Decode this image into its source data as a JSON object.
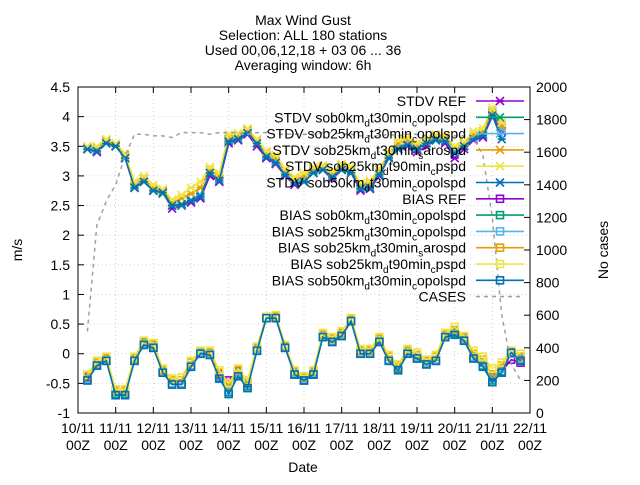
{
  "chart_data": {
    "type": "line",
    "title_lines": [
      "Max Wind Gust",
      "Selection: ALL    180 stations",
      "Used 00,06,12,18 + 03 06 ... 36",
      "Averaging window:  6h"
    ],
    "xlabel": "Date",
    "ylabel_left": "m/s",
    "ylabel_right": "No cases",
    "ylim_left": [
      -1,
      4.5
    ],
    "ylim_right": [
      0,
      2000
    ],
    "yticks_left": [
      "-1",
      "-0.5",
      "0",
      "0.5",
      "1",
      "1.5",
      "2",
      "2.5",
      "3",
      "3.5",
      "4",
      "4.5"
    ],
    "yticks_right": [
      "0",
      "200",
      "400",
      "600",
      "800",
      "1000",
      "1200",
      "1400",
      "1600",
      "1800",
      "2000"
    ],
    "xticks": [
      {
        "day": "10/11",
        "hour": "00Z"
      },
      {
        "day": "11/11",
        "hour": "00Z"
      },
      {
        "day": "12/11",
        "hour": "00Z"
      },
      {
        "day": "13/11",
        "hour": "00Z"
      },
      {
        "day": "14/11",
        "hour": "00Z"
      },
      {
        "day": "15/11",
        "hour": "00Z"
      },
      {
        "day": "16/11",
        "hour": "00Z"
      },
      {
        "day": "17/11",
        "hour": "00Z"
      },
      {
        "day": "18/11",
        "hour": "00Z"
      },
      {
        "day": "19/11",
        "hour": "00Z"
      },
      {
        "day": "20/11",
        "hour": "00Z"
      },
      {
        "day": "21/11",
        "hour": "00Z"
      },
      {
        "day": "22/11",
        "hour": "00Z"
      }
    ],
    "x_days": [
      0.25,
      0.5,
      0.75,
      1.0,
      1.25,
      1.5,
      1.75,
      2.0,
      2.25,
      2.5,
      2.75,
      3.0,
      3.25,
      3.5,
      3.75,
      4.0,
      4.25,
      4.5,
      4.75,
      5.0,
      5.25,
      5.5,
      5.75,
      6.0,
      6.25,
      6.5,
      6.75,
      7.0,
      7.25,
      7.5,
      7.75,
      8.0,
      8.25,
      8.5,
      8.75,
      9.0,
      9.25,
      9.5,
      9.75,
      10.0,
      10.25,
      10.5,
      10.75,
      11.0,
      11.25,
      11.5,
      11.75
    ],
    "series": [
      {
        "name": "STDV REF",
        "color": "#9400d3",
        "marker": "x",
        "axis": "left",
        "values": [
          3.45,
          3.4,
          3.55,
          3.5,
          3.3,
          2.8,
          2.95,
          2.75,
          2.72,
          2.45,
          2.5,
          2.55,
          2.62,
          3.0,
          2.9,
          3.55,
          3.6,
          3.7,
          3.5,
          3.3,
          3.2,
          3.0,
          2.85,
          2.9,
          3.05,
          3.1,
          2.95,
          3.1,
          3.05,
          2.75,
          2.78,
          3.0,
          3.3,
          3.45,
          3.5,
          3.4,
          3.5,
          3.6,
          3.55,
          3.3,
          3.45,
          3.6,
          3.65,
          4.0,
          3.75,
          null,
          null
        ]
      },
      {
        "name": "STDV sob0km_d t30min_c opolspd",
        "label_main": "STDV sob0km",
        "label_sub1": "d",
        "label_mid": "t30min",
        "label_sub2": "c",
        "label_end": "opolspd",
        "color": "#009e73",
        "marker": "x",
        "axis": "left",
        "values": [
          3.45,
          3.42,
          3.55,
          3.5,
          3.3,
          2.82,
          2.9,
          2.75,
          2.7,
          2.5,
          2.5,
          2.58,
          2.65,
          3.05,
          2.95,
          3.6,
          3.62,
          3.72,
          3.55,
          3.35,
          3.25,
          3.02,
          2.88,
          2.92,
          3.08,
          3.12,
          2.98,
          3.12,
          3.08,
          2.78,
          2.8,
          3.02,
          3.32,
          3.48,
          3.55,
          3.45,
          3.55,
          3.62,
          3.6,
          3.4,
          3.5,
          3.65,
          3.7,
          4.05,
          3.85,
          null,
          null
        ]
      },
      {
        "name": "STDV sob25km_d t30min_c opolspd",
        "label_main": "STDV sob25km",
        "label_sub1": "d",
        "label_mid": "t30min",
        "label_sub2": "c",
        "label_end": "opolspd",
        "color": "#56b4e9",
        "marker": "x",
        "axis": "left",
        "values": [
          3.47,
          3.44,
          3.57,
          3.5,
          3.32,
          2.84,
          2.9,
          2.77,
          2.72,
          2.52,
          2.52,
          2.6,
          2.68,
          3.05,
          2.95,
          3.62,
          3.65,
          3.75,
          3.55,
          3.35,
          3.25,
          3.05,
          2.9,
          2.95,
          3.1,
          3.12,
          3.0,
          3.15,
          3.1,
          2.8,
          2.82,
          3.05,
          3.35,
          3.5,
          3.55,
          3.48,
          3.58,
          3.65,
          3.62,
          3.42,
          3.52,
          3.65,
          3.72,
          4.08,
          3.8,
          null,
          null
        ]
      },
      {
        "name": "STDV sob25km_d t30min_s arospd",
        "label_main": "STDV sob25km",
        "label_sub1": "d",
        "label_mid": "t30min",
        "label_sub2": "s",
        "label_end": "arospd",
        "color": "#e69f00",
        "marker": "x",
        "axis": "left",
        "values": [
          3.5,
          3.48,
          3.6,
          3.52,
          3.35,
          2.88,
          2.95,
          2.8,
          2.75,
          2.55,
          2.62,
          2.7,
          2.8,
          3.1,
          3.0,
          3.65,
          3.68,
          3.78,
          3.6,
          3.4,
          3.3,
          3.1,
          2.95,
          3.0,
          3.12,
          3.15,
          3.05,
          3.18,
          3.12,
          2.85,
          2.88,
          3.1,
          3.38,
          3.55,
          3.6,
          3.52,
          3.6,
          3.68,
          3.65,
          3.48,
          3.55,
          3.7,
          3.75,
          4.1,
          3.85,
          null,
          null
        ]
      },
      {
        "name": "STDV sob25km_d t90min_c pspd",
        "label_main": "STDV sob25km",
        "label_sub1": "d",
        "label_mid": "t90min",
        "label_sub2": "c",
        "label_end": "pspd",
        "color": "#f0e442",
        "marker": "x",
        "axis": "left",
        "values": [
          3.5,
          3.5,
          3.62,
          3.55,
          3.38,
          2.9,
          3.0,
          2.85,
          2.78,
          2.6,
          2.68,
          2.8,
          2.9,
          3.15,
          3.05,
          3.7,
          3.72,
          3.8,
          3.62,
          3.42,
          3.35,
          3.12,
          2.98,
          3.05,
          3.15,
          3.18,
          3.08,
          3.2,
          3.15,
          2.88,
          2.92,
          3.12,
          3.4,
          3.6,
          3.65,
          3.55,
          3.62,
          3.7,
          3.68,
          3.5,
          3.58,
          3.75,
          3.8,
          4.15,
          3.9,
          null,
          null
        ]
      },
      {
        "name": "STDV sob50km_d t30min_c opolspd",
        "label_main": "STDV sob50km",
        "label_sub1": "d",
        "label_mid": "t30min",
        "label_sub2": "c",
        "label_end": "opolspd",
        "color": "#0072b2",
        "marker": "x",
        "axis": "left",
        "values": [
          3.45,
          3.42,
          3.55,
          3.5,
          3.3,
          2.8,
          2.9,
          2.75,
          2.72,
          2.5,
          2.52,
          2.58,
          2.65,
          3.05,
          2.92,
          3.58,
          3.62,
          3.72,
          3.55,
          3.32,
          3.22,
          3.02,
          2.88,
          2.9,
          3.05,
          3.1,
          2.98,
          3.1,
          3.05,
          2.78,
          2.8,
          3.02,
          3.3,
          3.45,
          3.52,
          3.45,
          3.55,
          3.6,
          3.58,
          3.38,
          3.5,
          3.62,
          3.68,
          4.02,
          3.62,
          null,
          null
        ]
      },
      {
        "name": "BIAS REF",
        "color": "#9400d3",
        "marker": "square",
        "axis": "left",
        "values": [
          -0.4,
          -0.2,
          -0.1,
          -0.65,
          -0.65,
          -0.1,
          0.15,
          0.1,
          -0.3,
          -0.5,
          -0.5,
          -0.2,
          0.0,
          0.0,
          -0.35,
          -0.45,
          -0.3,
          -0.5,
          0.05,
          0.6,
          0.6,
          0.1,
          -0.35,
          -0.45,
          -0.35,
          0.3,
          0.2,
          0.3,
          0.55,
          0.0,
          0.0,
          0.2,
          -0.1,
          -0.25,
          0.0,
          -0.05,
          -0.15,
          -0.1,
          0.3,
          0.35,
          0.25,
          -0.05,
          -0.15,
          -0.4,
          -0.3,
          -0.1,
          -0.15
        ]
      },
      {
        "name": "BIAS sob0km_d t30min_c opolspd",
        "label_main": "BIAS sob0km",
        "label_sub1": "d",
        "label_mid": "t30min",
        "label_sub2": "c",
        "label_end": "opolspd",
        "color": "#009e73",
        "marker": "square",
        "axis": "left",
        "values": [
          -0.45,
          -0.2,
          -0.12,
          -0.68,
          -0.68,
          -0.12,
          0.15,
          0.12,
          -0.32,
          -0.52,
          -0.52,
          -0.22,
          0.0,
          -0.02,
          -0.4,
          -0.65,
          -0.35,
          -0.55,
          0.05,
          0.6,
          0.62,
          0.1,
          -0.35,
          -0.45,
          -0.35,
          0.28,
          0.2,
          0.3,
          0.55,
          0.0,
          0.0,
          0.22,
          -0.12,
          -0.25,
          0.0,
          -0.08,
          -0.18,
          -0.12,
          0.28,
          0.35,
          0.22,
          -0.08,
          -0.2,
          -0.45,
          -0.3,
          0.02,
          -0.1
        ]
      },
      {
        "name": "BIAS sob25km_d t30min_c opolspd",
        "label_main": "BIAS sob25km",
        "label_sub1": "d",
        "label_mid": "t30min",
        "label_sub2": "c",
        "label_end": "opolspd",
        "color": "#56b4e9",
        "marker": "square",
        "axis": "left",
        "values": [
          -0.42,
          -0.18,
          -0.1,
          -0.65,
          -0.65,
          -0.1,
          0.18,
          0.12,
          -0.3,
          -0.5,
          -0.5,
          -0.2,
          0.02,
          0.0,
          -0.38,
          -0.62,
          -0.32,
          -0.52,
          0.08,
          0.62,
          0.62,
          0.12,
          -0.32,
          -0.42,
          -0.32,
          0.3,
          0.22,
          0.32,
          0.55,
          0.02,
          0.02,
          0.22,
          -0.1,
          -0.22,
          0.02,
          -0.05,
          -0.15,
          -0.1,
          0.3,
          0.38,
          0.25,
          -0.05,
          -0.15,
          -0.42,
          -0.25,
          0.0,
          -0.08
        ]
      },
      {
        "name": "BIAS sob25km_d t30min_s arospd",
        "label_main": "BIAS sob25km",
        "label_sub1": "d",
        "label_mid": "t30min",
        "label_sub2": "s",
        "label_end": "arospd",
        "color": "#e69f00",
        "marker": "square",
        "axis": "left",
        "values": [
          -0.38,
          -0.15,
          -0.08,
          -0.62,
          -0.62,
          -0.08,
          0.2,
          0.15,
          -0.28,
          -0.45,
          -0.45,
          -0.15,
          0.05,
          0.02,
          -0.32,
          -0.55,
          -0.28,
          -0.48,
          0.1,
          0.62,
          0.62,
          0.12,
          -0.3,
          -0.4,
          -0.3,
          0.32,
          0.25,
          0.35,
          0.58,
          0.05,
          0.05,
          0.25,
          -0.05,
          -0.2,
          0.05,
          -0.02,
          -0.12,
          -0.05,
          0.32,
          0.4,
          0.28,
          0.0,
          -0.1,
          -0.35,
          -0.2,
          0.05,
          -0.05
        ]
      },
      {
        "name": "BIAS sob25km_d t90min_c pspd",
        "label_main": "BIAS sob25km",
        "label_sub1": "d",
        "label_mid": "t90min",
        "label_sub2": "c",
        "label_end": "pspd",
        "color": "#f0e442",
        "marker": "square",
        "axis": "left",
        "values": [
          -0.35,
          -0.12,
          -0.05,
          -0.6,
          -0.6,
          -0.05,
          0.22,
          0.18,
          -0.25,
          -0.42,
          -0.4,
          -0.12,
          0.05,
          0.05,
          -0.28,
          -0.5,
          -0.25,
          -0.45,
          0.12,
          0.62,
          0.65,
          0.15,
          -0.28,
          -0.38,
          -0.28,
          0.35,
          0.28,
          0.38,
          0.6,
          0.08,
          0.08,
          0.28,
          -0.02,
          -0.18,
          0.08,
          0.02,
          -0.1,
          -0.02,
          0.35,
          0.45,
          0.3,
          0.05,
          -0.05,
          -0.25,
          -0.15,
          0.05,
          0.0
        ]
      },
      {
        "name": "BIAS sob50km_d t30min_c opolspd",
        "label_main": "BIAS sob50km",
        "label_sub1": "d",
        "label_mid": "t30min",
        "label_sub2": "c",
        "label_end": "opolspd",
        "color": "#0072b2",
        "marker": "square",
        "axis": "left",
        "values": [
          -0.45,
          -0.2,
          -0.12,
          -0.7,
          -0.7,
          -0.12,
          0.15,
          0.1,
          -0.32,
          -0.52,
          -0.52,
          -0.22,
          0.0,
          -0.02,
          -0.42,
          -0.68,
          -0.38,
          -0.58,
          0.05,
          0.6,
          0.6,
          0.1,
          -0.35,
          -0.45,
          -0.35,
          0.28,
          0.2,
          0.3,
          0.55,
          0.0,
          0.0,
          0.2,
          -0.12,
          -0.28,
          0.0,
          -0.08,
          -0.18,
          -0.12,
          0.28,
          0.32,
          0.22,
          -0.08,
          -0.22,
          -0.48,
          -0.32,
          0.02,
          -0.12
        ]
      },
      {
        "name": "CASES",
        "color": "#a0a0a0",
        "dashed": true,
        "marker": "none",
        "axis": "right",
        "values": [
          500,
          1150,
          1300,
          1400,
          1580,
          1710,
          1710,
          1700,
          1700,
          1690,
          1720,
          1720,
          1720,
          1710,
          1720,
          1720,
          1720,
          1710,
          1720,
          1720,
          1710,
          1710,
          1710,
          1710,
          1710,
          1720,
          1720,
          1710,
          1710,
          1700,
          1700,
          1700,
          1710,
          1700,
          1710,
          1710,
          1700,
          1710,
          1700,
          1700,
          1700,
          1690,
          1580,
          1200,
          600,
          300,
          200
        ]
      }
    ],
    "legend_position": "top-right",
    "grid": true
  }
}
